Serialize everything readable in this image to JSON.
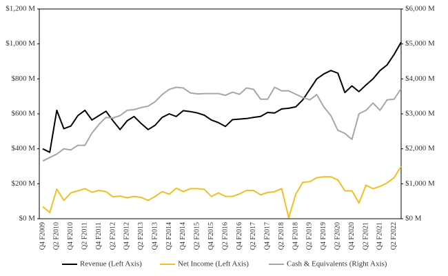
{
  "chart_data": {
    "type": "line",
    "categories": [
      "Q4 F2009",
      null,
      "Q2 F2010",
      null,
      "Q4 F2010",
      null,
      "Q2 F2011",
      null,
      "Q4 F2011",
      null,
      "Q2 F2012",
      null,
      "Q4 F2012",
      null,
      "Q2 F2013",
      null,
      "Q4 F2013",
      null,
      "Q2 F2014",
      null,
      "Q4 F2014",
      null,
      "Q2 F2015",
      null,
      "Q4 F2015",
      null,
      "Q2 F2016",
      null,
      "Q4 F2016",
      null,
      "Q2 F2017",
      null,
      "Q4 F2017",
      null,
      "Q2 F2018",
      null,
      "Q4 F2018",
      null,
      "Q2 F2019",
      null,
      "Q4 F2019",
      null,
      "Q2 F2020",
      null,
      "Q4 F2020",
      null,
      "Q2 F2021",
      null,
      "Q4 F2021",
      null,
      "Q2 F2022",
      null
    ],
    "series": [
      {
        "name": "Revenue (Left Axis)",
        "color": "#000000",
        "values": [
          400,
          380,
          620,
          515,
          530,
          590,
          620,
          565,
          590,
          615,
          560,
          510,
          560,
          585,
          545,
          510,
          535,
          580,
          600,
          585,
          618,
          613,
          605,
          592,
          565,
          550,
          528,
          567,
          570,
          573,
          580,
          585,
          608,
          605,
          628,
          632,
          640,
          680,
          740,
          800,
          828,
          848,
          833,
          722,
          760,
          727,
          765,
          800,
          848,
          880,
          940,
          1010
        ]
      },
      {
        "name": "Net Income (Left Axis)",
        "color": "#f2c01e",
        "values": [
          70,
          35,
          170,
          105,
          148,
          160,
          172,
          152,
          162,
          155,
          125,
          130,
          120,
          128,
          122,
          105,
          128,
          155,
          140,
          175,
          155,
          172,
          172,
          168,
          127,
          148,
          128,
          128,
          142,
          162,
          162,
          137,
          150,
          155,
          172,
          5,
          140,
          208,
          212,
          235,
          240,
          240,
          222,
          160,
          160,
          90,
          192,
          172,
          185,
          205,
          235,
          300
        ]
      },
      {
        "name": "Cash & Equivalents (Right Axis)",
        "color": "#a6a6a6",
        "axis": "y2",
        "values": [
          1650,
          1750,
          1850,
          2000,
          1970,
          2100,
          2100,
          2450,
          2700,
          2900,
          2880,
          2950,
          3100,
          3120,
          3180,
          3220,
          3350,
          3550,
          3700,
          3760,
          3740,
          3600,
          3570,
          3580,
          3580,
          3580,
          3530,
          3620,
          3560,
          3740,
          3700,
          3420,
          3420,
          3760,
          3660,
          3660,
          3560,
          3470,
          3400,
          3550,
          3200,
          2950,
          2530,
          2440,
          2270,
          3000,
          3100,
          3310,
          3100,
          3400,
          3420,
          3720
        ]
      }
    ],
    "ylim": [
      0,
      1200
    ],
    "yticks": [
      {
        "value": 0,
        "label": "$0 M"
      },
      {
        "value": 200,
        "label": "$200 M"
      },
      {
        "value": 400,
        "label": "$400 M"
      },
      {
        "value": 600,
        "label": "$600 M"
      },
      {
        "value": 800,
        "label": "$800 M"
      },
      {
        "value": 1000,
        "label": "$1,000 M"
      },
      {
        "value": 1200,
        "label": "$1,200 M"
      }
    ],
    "y2lim": [
      0,
      6000
    ],
    "y2ticks": [
      {
        "value": 0,
        "label": "$0 M"
      },
      {
        "value": 1000,
        "label": "$1,000 M"
      },
      {
        "value": 2000,
        "label": "$2,000 M"
      },
      {
        "value": 3000,
        "label": "$3,000 M"
      },
      {
        "value": 4000,
        "label": "$4,000 M"
      },
      {
        "value": 5000,
        "label": "$5,000 M"
      },
      {
        "value": 6000,
        "label": "$6,000 M"
      }
    ],
    "grid": false,
    "legend": "bottom"
  }
}
